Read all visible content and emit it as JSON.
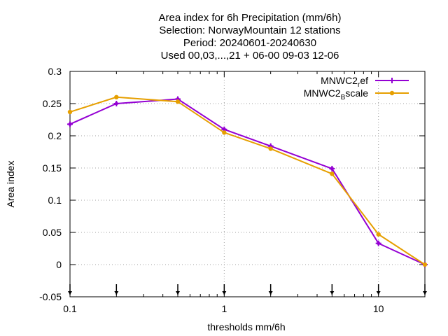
{
  "chart_data": {
    "type": "line",
    "title_lines": [
      "Area index  for 6h Precipitation (mm/6h)",
      "Selection: NorwayMountain     12 stations",
      "Period: 20240601-20240630",
      "Used 00,03,...,21 + 06-00 09-03 12-06"
    ],
    "xlabel": "thresholds mm/6h",
    "ylabel": "Area index",
    "x_scale": "log",
    "xlim": [
      0.1,
      20
    ],
    "ylim": [
      -0.05,
      0.3
    ],
    "x_ticks": [
      0.1,
      1,
      10
    ],
    "x_tick_labels": [
      "0.1",
      "1",
      "10"
    ],
    "y_ticks": [
      -0.05,
      0,
      0.05,
      0.1,
      0.15,
      0.2,
      0.25,
      0.3
    ],
    "y_tick_labels": [
      "-0.05",
      "0",
      "0.05",
      "0.1",
      "0.15",
      "0.2",
      "0.25",
      "0.3"
    ],
    "grid": true,
    "legend_position": "top-right",
    "threshold_markers": [
      0.1,
      0.2,
      0.5,
      1,
      2,
      5,
      10,
      20
    ],
    "x": [
      0.1,
      0.2,
      0.5,
      1,
      2,
      5,
      10,
      20
    ],
    "series": [
      {
        "name_main": "MNWC2",
        "name_sub": "r",
        "name_tail": "ef",
        "color": "#9400d3",
        "values": [
          0.218,
          0.25,
          0.257,
          0.21,
          0.184,
          0.149,
          0.033,
          0.0
        ]
      },
      {
        "name_main": "MNWC2",
        "name_sub": "B",
        "name_tail": "scale",
        "color": "#e69f00",
        "values": [
          0.237,
          0.26,
          0.253,
          0.205,
          0.18,
          0.141,
          0.047,
          0.0
        ]
      }
    ]
  }
}
